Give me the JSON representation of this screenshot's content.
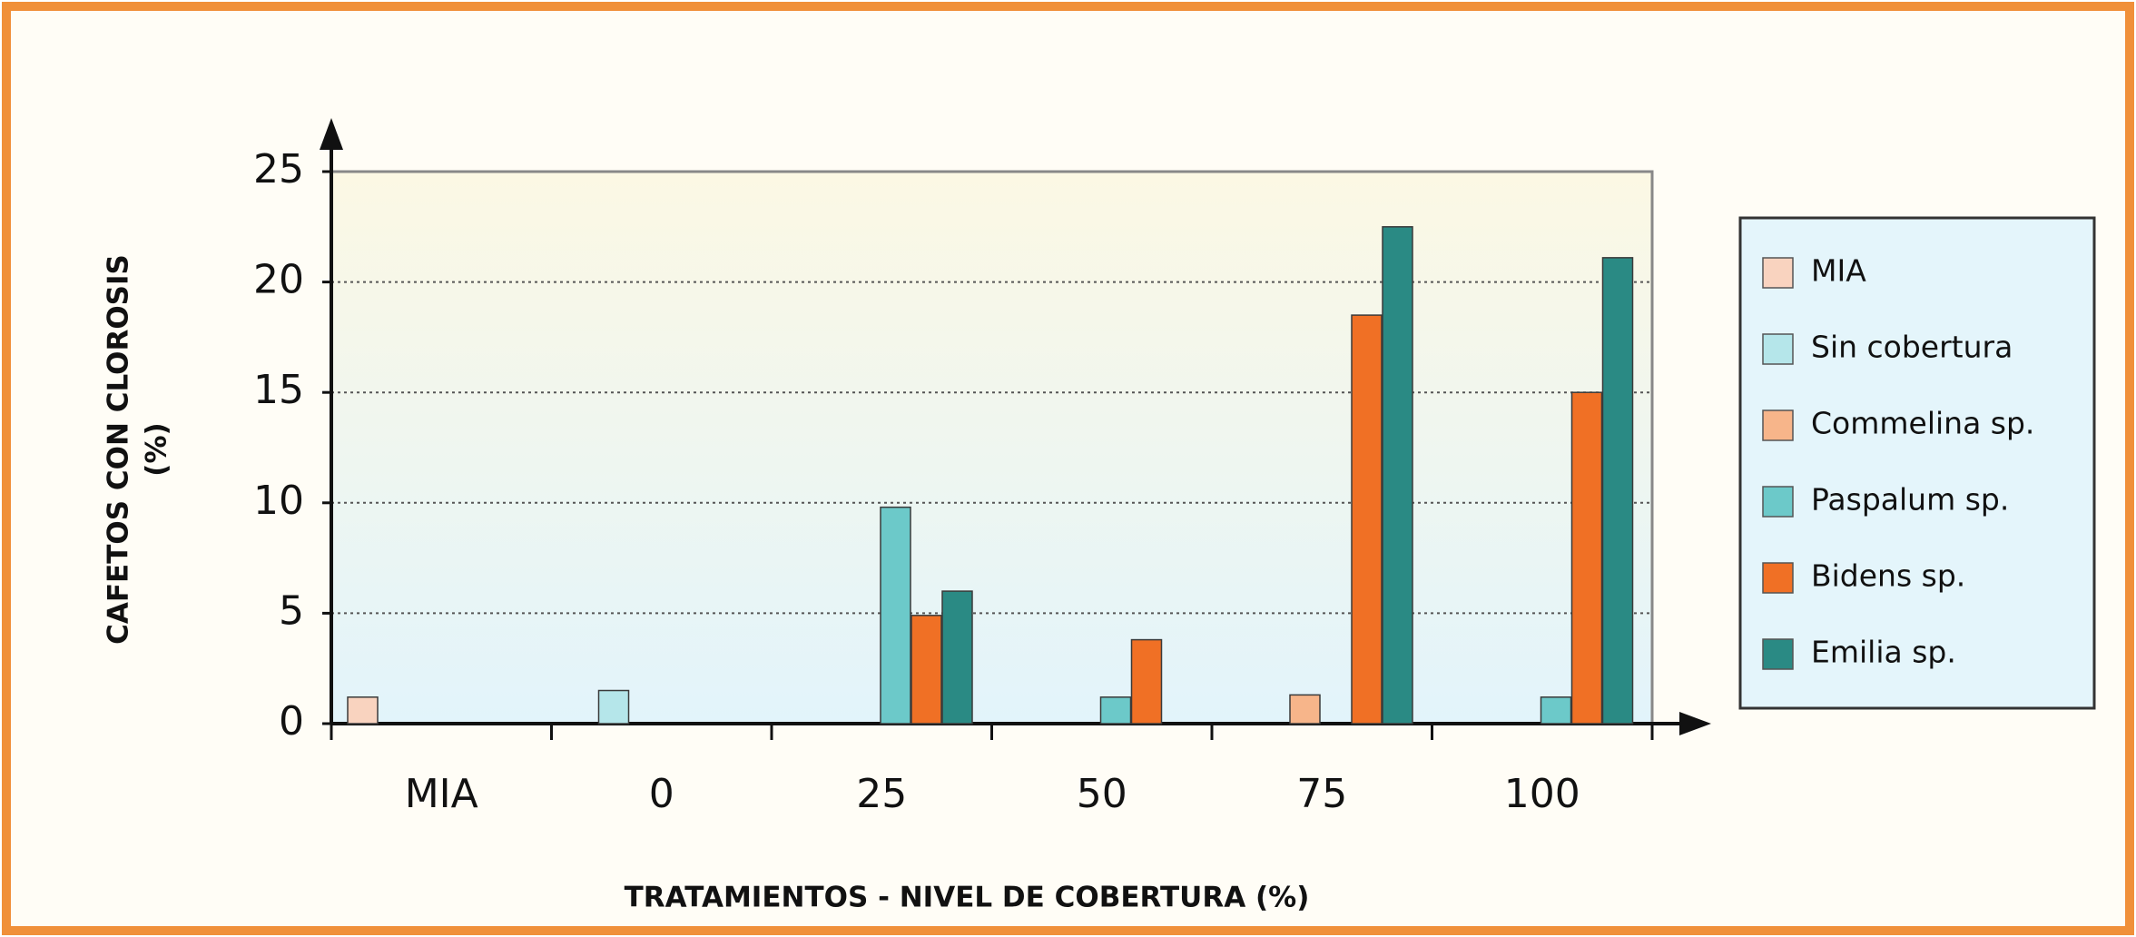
{
  "chart_data": {
    "type": "bar",
    "y_label": [
      "CAFETOS CON CLOROSIS",
      "(%)"
    ],
    "x_label": "TRATAMIENTOS - NIVEL DE COBERTURA (%)",
    "categories": [
      "MIA",
      "0",
      "25",
      "50",
      "75",
      "100"
    ],
    "series": [
      {
        "name": "MIA",
        "color": "#f9d3bf",
        "values": [
          1.2,
          0,
          0,
          0,
          0,
          0
        ]
      },
      {
        "name": "Sin cobertura",
        "color": "#b5e6ea",
        "values": [
          0,
          1.5,
          0,
          0,
          0,
          0
        ]
      },
      {
        "name": "Commelina sp.",
        "color": "#f7b58a",
        "values": [
          0,
          0,
          0,
          0,
          1.3,
          0
        ]
      },
      {
        "name": "Paspalum sp.",
        "color": "#6cc9c9",
        "values": [
          0,
          0,
          9.8,
          1.2,
          0,
          1.2
        ]
      },
      {
        "name": "Bidens sp.",
        "color": "#f07025",
        "values": [
          0,
          0,
          4.9,
          3.8,
          18.5,
          15
        ]
      },
      {
        "name": "Emilia sp.",
        "color": "#2a8a84",
        "values": [
          0,
          0,
          6.0,
          0,
          22.5,
          21.1
        ]
      }
    ],
    "ylim": [
      0,
      25
    ],
    "yticks": [
      0,
      5,
      10,
      15,
      20,
      25
    ],
    "grid": true,
    "legend": "right"
  }
}
